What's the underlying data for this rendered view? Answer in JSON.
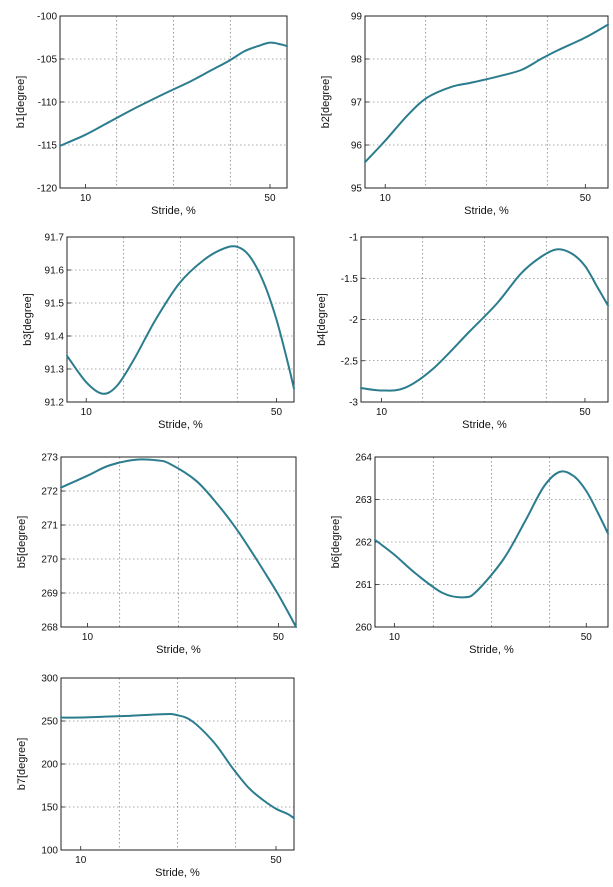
{
  "colors": {
    "line": "#2b7d8e",
    "frame": "#222222",
    "grid": "#555555"
  },
  "chart_data": [
    {
      "type": "line",
      "xscale": "log",
      "xlabel": "Stride, %",
      "ylabel": "b1[degree]",
      "xlim": [
        8,
        58
      ],
      "ylim": [
        -120,
        -100
      ],
      "xticks": [
        10,
        50
      ],
      "yticks": [
        -120,
        -115,
        -110,
        -105,
        -100
      ],
      "grid": true,
      "series": [
        {
          "x": [
            8,
            10,
            12,
            15,
            20,
            25,
            30,
            35,
            40,
            45,
            50,
            55,
            58
          ],
          "y": [
            -115.1,
            -113.8,
            -112.5,
            -110.9,
            -109.0,
            -107.6,
            -106.3,
            -105.2,
            -104.1,
            -103.5,
            -103.1,
            -103.3,
            -103.5
          ]
        }
      ]
    },
    {
      "type": "line",
      "xscale": "log",
      "xlabel": "Stride, %",
      "ylabel": "b2[degree]",
      "xlim": [
        8.5,
        60
      ],
      "ylim": [
        95,
        99
      ],
      "xticks": [
        10,
        50
      ],
      "yticks": [
        95,
        96,
        97,
        98,
        99
      ],
      "grid": true,
      "series": [
        {
          "x": [
            8.5,
            10,
            12,
            14,
            17,
            20,
            25,
            30,
            35,
            40,
            50,
            60
          ],
          "y": [
            95.6,
            96.1,
            96.7,
            97.1,
            97.35,
            97.45,
            97.6,
            97.75,
            98.0,
            98.2,
            98.5,
            98.8
          ]
        }
      ]
    },
    {
      "type": "line",
      "xscale": "log",
      "xlabel": "Stride, %",
      "ylabel": "b3[degree]",
      "xlim": [
        8.5,
        58
      ],
      "ylim": [
        91.2,
        91.7
      ],
      "xticks": [
        10,
        50
      ],
      "yticks": [
        91.2,
        91.3,
        91.4,
        91.5,
        91.6,
        91.7
      ],
      "grid": true,
      "series": [
        {
          "x": [
            8.5,
            10,
            11.5,
            13,
            15,
            18,
            22,
            27,
            32,
            36,
            40,
            45,
            50,
            55,
            58
          ],
          "y": [
            91.34,
            91.26,
            91.225,
            91.25,
            91.33,
            91.45,
            91.56,
            91.63,
            91.665,
            91.67,
            91.64,
            91.56,
            91.45,
            91.32,
            91.24
          ]
        }
      ]
    },
    {
      "type": "line",
      "xscale": "log",
      "xlabel": "Stride, %",
      "ylabel": "b4[degree]",
      "xlim": [
        8.5,
        60
      ],
      "ylim": [
        -3,
        -1
      ],
      "xticks": [
        10,
        50
      ],
      "yticks": [
        -3,
        -2.5,
        -2,
        -1.5,
        -1
      ],
      "grid": true,
      "series": [
        {
          "x": [
            8.5,
            10,
            12,
            15,
            20,
            25,
            30,
            35,
            40,
            45,
            50,
            55,
            60
          ],
          "y": [
            -2.83,
            -2.86,
            -2.83,
            -2.6,
            -2.15,
            -1.8,
            -1.45,
            -1.25,
            -1.15,
            -1.2,
            -1.35,
            -1.6,
            -1.83
          ]
        }
      ]
    },
    {
      "type": "line",
      "xscale": "log",
      "xlabel": "Stride, %",
      "ylabel": "b5[degree]",
      "xlim": [
        8,
        58
      ],
      "ylim": [
        268,
        273
      ],
      "xticks": [
        10,
        50
      ],
      "yticks": [
        268,
        269,
        270,
        271,
        272,
        273
      ],
      "grid": true,
      "series": [
        {
          "x": [
            8,
            10,
            12,
            15,
            18,
            20,
            25,
            30,
            35,
            40,
            45,
            50,
            55,
            58
          ],
          "y": [
            272.1,
            272.45,
            272.75,
            272.92,
            272.9,
            272.8,
            272.3,
            271.6,
            270.9,
            270.2,
            269.55,
            268.95,
            268.35,
            268.0
          ]
        }
      ]
    },
    {
      "type": "line",
      "xscale": "log",
      "xlabel": "Stride, %",
      "ylabel": "b6[degree]",
      "xlim": [
        8.5,
        60
      ],
      "ylim": [
        260,
        264
      ],
      "xticks": [
        10,
        50
      ],
      "yticks": [
        260,
        261,
        262,
        263,
        264
      ],
      "grid": true,
      "series": [
        {
          "x": [
            8.5,
            10,
            12,
            15,
            18,
            20,
            25,
            30,
            35,
            40,
            45,
            50,
            55,
            60
          ],
          "y": [
            262.05,
            261.7,
            261.25,
            260.8,
            260.7,
            260.85,
            261.6,
            262.5,
            263.3,
            263.65,
            263.55,
            263.2,
            262.7,
            262.2
          ]
        }
      ]
    },
    {
      "type": "line",
      "xscale": "log",
      "xlabel": "Stride, %",
      "ylabel": "b7[degree]",
      "xlim": [
        8.5,
        58
      ],
      "ylim": [
        100,
        300
      ],
      "xticks": [
        10,
        50
      ],
      "yticks": [
        100,
        150,
        200,
        250,
        300
      ],
      "grid": true,
      "series": [
        {
          "x": [
            8.5,
            10,
            12,
            15,
            20,
            22,
            25,
            30,
            35,
            40,
            45,
            50,
            55,
            58
          ],
          "y": [
            254,
            254,
            255,
            256,
            258,
            257,
            250,
            225,
            195,
            172,
            158,
            148,
            142,
            137
          ]
        }
      ]
    }
  ]
}
